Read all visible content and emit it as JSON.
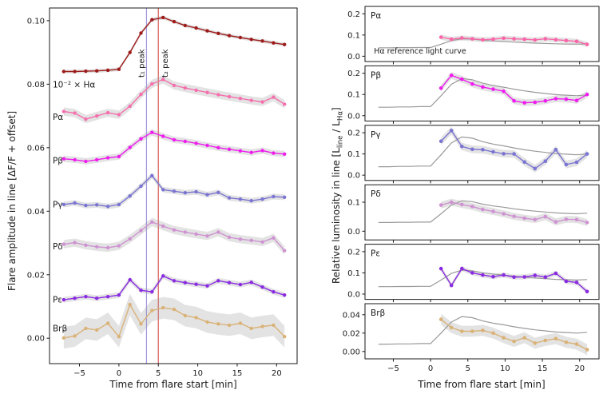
{
  "axes": {
    "left_xlabel": "Time from flare start [min]",
    "right_xlabel": "Time from flare start [min]",
    "left_ylabel": "Flare amplitude in line [ΔF/F + offset]",
    "right_ylabel_segments": [
      {
        "t": "Relative luminosity in line [L"
      },
      {
        "t": "line",
        "sub": true
      },
      {
        "t": " / L"
      },
      {
        "t": "Hα",
        "sub": true
      },
      {
        "t": "]"
      }
    ]
  },
  "chart_data": {
    "type": "line",
    "x_time_min": [
      -7.0,
      -5.6,
      -4.2,
      -2.8,
      -1.4,
      0.0,
      1.4,
      2.8,
      4.2,
      5.6,
      7.0,
      8.4,
      9.8,
      11.2,
      12.6,
      14.0,
      15.4,
      16.8,
      18.2,
      19.6,
      21.0
    ],
    "x_flare_min": [
      1.4,
      2.8,
      4.2,
      5.6,
      7.0,
      8.4,
      9.8,
      11.2,
      12.6,
      14.0,
      15.4,
      16.8,
      18.2,
      19.6,
      21.0
    ],
    "xticks": [
      -5,
      0,
      5,
      10,
      15,
      20
    ],
    "xtick_labels": [
      "−5",
      "0",
      "5",
      "10",
      "15",
      "20"
    ],
    "left_panel": {
      "xlim": [
        -8.8,
        22.6
      ],
      "ylim": [
        -0.008,
        0.104
      ],
      "yticks": [
        0.0,
        0.02,
        0.04,
        0.06,
        0.08,
        0.1
      ],
      "ytick_labels": [
        "0.00",
        "0.02",
        "0.04",
        "0.06",
        "0.08",
        "0.10"
      ],
      "vlines": [
        {
          "x": 3.5,
          "color": "#8f83dc",
          "label": "t₁ peak",
          "label_color": "#8f83dc",
          "side": "left"
        },
        {
          "x": 5.0,
          "color": "#d43b3b",
          "label": "t₂ peak",
          "label_color": "#d884a0",
          "side": "right"
        }
      ],
      "series": [
        {
          "name": "10⁻² × Hα",
          "color": "#9e1b1b",
          "band": 0.0006,
          "label_x": -8.4,
          "label_y": 0.079,
          "values": [
            0.084,
            0.084,
            0.0841,
            0.0842,
            0.0844,
            0.0847,
            0.09,
            0.0961,
            0.1003,
            0.101,
            0.0997,
            0.0985,
            0.0977,
            0.0968,
            0.096,
            0.0953,
            0.0947,
            0.0941,
            0.0936,
            0.093,
            0.0925
          ]
        },
        {
          "name": "Pα",
          "color": "#f470ae",
          "band": 0.0013,
          "label_x": -8.4,
          "label_y": 0.0688,
          "values": [
            0.0714,
            0.0709,
            0.069,
            0.07,
            0.071,
            0.0704,
            0.0731,
            0.0768,
            0.0801,
            0.0815,
            0.0796,
            0.0788,
            0.0781,
            0.0774,
            0.0767,
            0.0761,
            0.0755,
            0.0749,
            0.0744,
            0.0759,
            0.0737
          ]
        },
        {
          "name": "Pβ",
          "color": "#ee1dee",
          "band": 0.001,
          "label_x": -8.4,
          "label_y": 0.055,
          "values": [
            0.0565,
            0.0562,
            0.0557,
            0.0562,
            0.0568,
            0.0572,
            0.0601,
            0.0628,
            0.0648,
            0.0636,
            0.0625,
            0.062,
            0.0614,
            0.0607,
            0.06,
            0.0595,
            0.059,
            0.0585,
            0.0591,
            0.0583,
            0.058
          ]
        },
        {
          "name": "Pγ",
          "color": "#7a74d2",
          "band": 0.0009,
          "label_x": -8.4,
          "label_y": 0.0412,
          "values": [
            0.0421,
            0.0426,
            0.0418,
            0.042,
            0.0415,
            0.0421,
            0.0448,
            0.0479,
            0.0512,
            0.0468,
            0.0463,
            0.0458,
            0.0461,
            0.0452,
            0.0459,
            0.0442,
            0.0438,
            0.0433,
            0.0438,
            0.0446,
            0.0444
          ]
        },
        {
          "name": "Pδ",
          "color": "#cf92d2",
          "band": 0.0013,
          "label_x": -8.4,
          "label_y": 0.028,
          "values": [
            0.0296,
            0.0301,
            0.0293,
            0.0288,
            0.0285,
            0.0291,
            0.0313,
            0.0339,
            0.0366,
            0.0353,
            0.0341,
            0.0334,
            0.0328,
            0.0322,
            0.0334,
            0.0318,
            0.0312,
            0.0308,
            0.0303,
            0.0316,
            0.0276
          ]
        },
        {
          "name": "Pε",
          "color": "#8a2be2",
          "band": 0.0009,
          "label_x": -8.4,
          "label_y": 0.0112,
          "values": [
            0.0121,
            0.0126,
            0.0131,
            0.0126,
            0.0131,
            0.0136,
            0.0184,
            0.0151,
            0.0146,
            0.0196,
            0.0181,
            0.0175,
            0.017,
            0.0165,
            0.0181,
            0.0175,
            0.0169,
            0.0176,
            0.0161,
            0.0146,
            0.0136
          ]
        },
        {
          "name": "Brβ",
          "color": "#d9b277",
          "band": 0.0034,
          "label_x": -8.4,
          "label_y": 0.0022,
          "values": [
            0.0001,
            0.0007,
            0.0031,
            0.0026,
            0.0047,
            0.0005,
            0.0106,
            0.0045,
            0.0087,
            0.0096,
            0.0091,
            0.0071,
            0.0065,
            0.0051,
            0.0045,
            0.0041,
            0.0047,
            0.0031,
            0.0037,
            0.0041,
            0.0005
          ]
        }
      ]
    },
    "right_panels": {
      "reference_label": "Hα reference light curve",
      "reference_color": "#9a9a9a",
      "reference_shape": [
        0.0,
        0.0,
        0.01,
        0.01,
        0.02,
        0.02,
        0.4,
        0.8,
        1.0,
        0.96,
        0.84,
        0.76,
        0.7,
        0.63,
        0.57,
        0.52,
        0.48,
        0.44,
        0.42,
        0.4,
        0.43
      ],
      "panels": [
        {
          "label": "Pα",
          "color": "#fa64a8",
          "ylim": [
            -0.025,
            0.235
          ],
          "yticks": [
            0.0,
            0.1,
            0.2
          ],
          "ytick_labels": [
            "0.0",
            "0.1",
            "0.2"
          ],
          "band": 0.012,
          "ref_offset": 0.04,
          "ref_scale": 0.042,
          "values": [
            0.09,
            0.08,
            0.086,
            0.082,
            0.078,
            0.08,
            0.085,
            0.082,
            0.08,
            0.077,
            0.082,
            0.078,
            0.074,
            0.07,
            0.056
          ]
        },
        {
          "label": "Pβ",
          "color": "#ee1dee",
          "ylim": [
            -0.025,
            0.235
          ],
          "yticks": [
            0.0,
            0.1,
            0.2
          ],
          "ytick_labels": [
            "0.0",
            "0.1",
            "0.2"
          ],
          "band": 0.016,
          "ref_offset": 0.04,
          "ref_scale": 0.135,
          "values": [
            0.13,
            0.19,
            0.172,
            0.15,
            0.135,
            0.125,
            0.115,
            0.07,
            0.061,
            0.063,
            0.07,
            0.08,
            0.078,
            0.072,
            0.1
          ]
        },
        {
          "label": "Pγ",
          "color": "#7a74d2",
          "ylim": [
            -0.025,
            0.235
          ],
          "yticks": [
            0.0,
            0.1,
            0.2
          ],
          "ytick_labels": [
            "0.0",
            "0.1",
            "0.2"
          ],
          "band": 0.018,
          "ref_offset": 0.04,
          "ref_scale": 0.14,
          "values": [
            0.16,
            0.21,
            0.135,
            0.122,
            0.12,
            0.11,
            0.101,
            0.1,
            0.062,
            0.031,
            0.066,
            0.12,
            0.05,
            0.061,
            0.1
          ]
        },
        {
          "label": "Pδ",
          "color": "#cf92d2",
          "ylim": [
            -0.03,
            0.16
          ],
          "yticks": [
            0.0,
            0.1
          ],
          "ytick_labels": [
            "0.0",
            "0.1"
          ],
          "band": 0.012,
          "ref_offset": 0.03,
          "ref_scale": 0.075,
          "values": [
            0.09,
            0.1,
            0.092,
            0.085,
            0.075,
            0.068,
            0.06,
            0.051,
            0.045,
            0.04,
            0.05,
            0.032,
            0.041,
            0.04,
            0.03
          ]
        },
        {
          "label": "Pε",
          "color": "#8a2be2",
          "ylim": [
            -0.025,
            0.235
          ],
          "yticks": [
            0.0,
            0.1,
            0.2
          ],
          "ytick_labels": [
            "0.0",
            "0.1",
            "0.2"
          ],
          "band": 0.012,
          "ref_offset": 0.035,
          "ref_scale": 0.078,
          "values": [
            0.12,
            0.041,
            0.12,
            0.1,
            0.09,
            0.082,
            0.09,
            0.08,
            0.081,
            0.088,
            0.08,
            0.098,
            0.06,
            0.055,
            0.012
          ]
        },
        {
          "label": "Brβ",
          "color": "#d9b277",
          "ylim": [
            -0.008,
            0.052
          ],
          "yticks": [
            0.0,
            0.02,
            0.04
          ],
          "ytick_labels": [
            "0.00",
            "0.02",
            "0.04"
          ],
          "band": 0.006,
          "ref_offset": 0.008,
          "ref_scale": 0.03,
          "values": [
            0.035,
            0.026,
            0.022,
            0.022,
            0.023,
            0.02,
            0.015,
            0.011,
            0.015,
            0.009,
            0.012,
            0.014,
            0.01,
            0.008,
            0.002
          ]
        }
      ]
    }
  }
}
